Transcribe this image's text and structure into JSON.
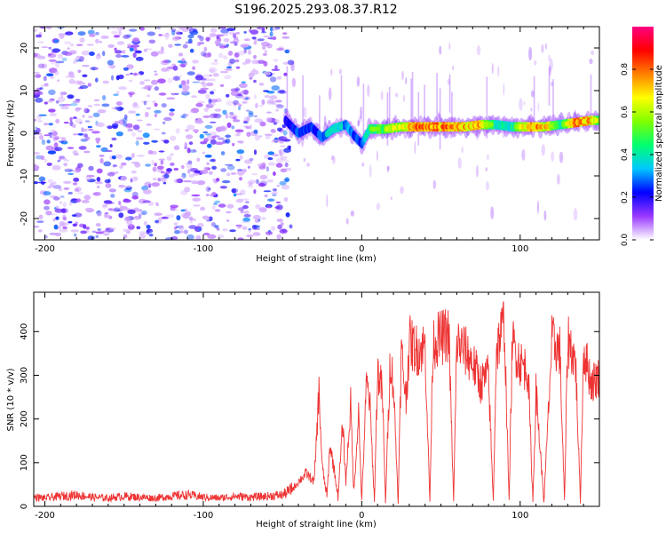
{
  "title": "S196.2025.293.08.37.R12",
  "chart_data": [
    {
      "type": "heatmap",
      "xlabel": "Height of straight line (km)",
      "ylabel": "Frequency (Hz)",
      "xlim": [
        -207,
        150
      ],
      "ylim": [
        -25,
        25
      ],
      "xticks": [
        -200,
        -100,
        0,
        100
      ],
      "yticks": [
        -20,
        -10,
        0,
        10,
        20
      ],
      "colorbar": {
        "label": "Normalized spectral amplitude",
        "range": [
          0.0,
          1.0
        ],
        "ticks": [
          0.0,
          0.2,
          0.4,
          0.6,
          0.8
        ],
        "tick_labels": [
          "0.0",
          "0.2",
          "0.4",
          "0.6",
          "0.8"
        ],
        "colors": [
          "#ffffff",
          "#9a38ff",
          "#0000ff",
          "#00c8ff",
          "#00ff70",
          "#80ff00",
          "#ffff00",
          "#ff8000",
          "#ff0000",
          "#ff0080"
        ]
      },
      "noise_region_x": [
        -207,
        -48
      ],
      "signal_ridge": {
        "x": [
          -48,
          -40,
          -32,
          -25,
          -18,
          -10,
          -5,
          0,
          5,
          15,
          25,
          35,
          45,
          55,
          65,
          75,
          85,
          95,
          105,
          115,
          125,
          135,
          145,
          150
        ],
        "frequency": [
          3.0,
          0.0,
          1.5,
          -1.0,
          1.0,
          2.0,
          -0.5,
          -2.5,
          1.0,
          1.0,
          1.5,
          1.5,
          1.5,
          1.5,
          1.5,
          2.0,
          2.0,
          1.5,
          1.5,
          1.5,
          2.0,
          2.5,
          3.0,
          3.0
        ],
        "amplitude": [
          0.2,
          0.3,
          0.25,
          0.3,
          0.45,
          0.35,
          0.3,
          0.25,
          0.5,
          0.6,
          0.7,
          0.9,
          0.9,
          0.85,
          0.8,
          0.8,
          0.4,
          0.45,
          0.85,
          0.8,
          0.45,
          0.9,
          0.8,
          0.6
        ]
      }
    },
    {
      "type": "line",
      "xlabel": "Height of straight line (km)",
      "ylabel": "SNR (10 * v/v)",
      "xlim": [
        -207,
        150
      ],
      "ylim": [
        0,
        490
      ],
      "xticks": [
        -200,
        -100,
        0,
        100
      ],
      "yticks": [
        0,
        100,
        200,
        300,
        400
      ],
      "series": [
        {
          "name": "SNR",
          "color": "#ee3333",
          "x": [
            -207,
            -200,
            -190,
            -180,
            -170,
            -160,
            -150,
            -140,
            -130,
            -120,
            -110,
            -100,
            -90,
            -80,
            -70,
            -60,
            -50,
            -45,
            -40,
            -35,
            -30,
            -27,
            -25,
            -22,
            -20,
            -17,
            -15,
            -12,
            -10,
            -7,
            -5,
            -2,
            0,
            3,
            5,
            8,
            10,
            13,
            15,
            18,
            20,
            23,
            25,
            28,
            30,
            35,
            40,
            43,
            45,
            50,
            55,
            58,
            60,
            65,
            70,
            75,
            80,
            83,
            85,
            90,
            93,
            95,
            100,
            105,
            108,
            110,
            115,
            120,
            125,
            128,
            130,
            135,
            138,
            140,
            145,
            150
          ],
          "values": [
            20,
            18,
            22,
            25,
            20,
            18,
            22,
            20,
            18,
            22,
            25,
            20,
            18,
            22,
            20,
            22,
            25,
            35,
            60,
            80,
            60,
            280,
            100,
            20,
            150,
            80,
            20,
            200,
            60,
            250,
            30,
            230,
            10,
            300,
            260,
            10,
            330,
            280,
            10,
            360,
            300,
            10,
            380,
            260,
            400,
            380,
            390,
            10,
            400,
            410,
            420,
            10,
            400,
            380,
            350,
            300,
            320,
            10,
            380,
            450,
            10,
            400,
            350,
            330,
            10,
            280,
            10,
            400,
            380,
            10,
            410,
            350,
            10,
            380,
            300,
            320
          ]
        }
      ]
    }
  ]
}
